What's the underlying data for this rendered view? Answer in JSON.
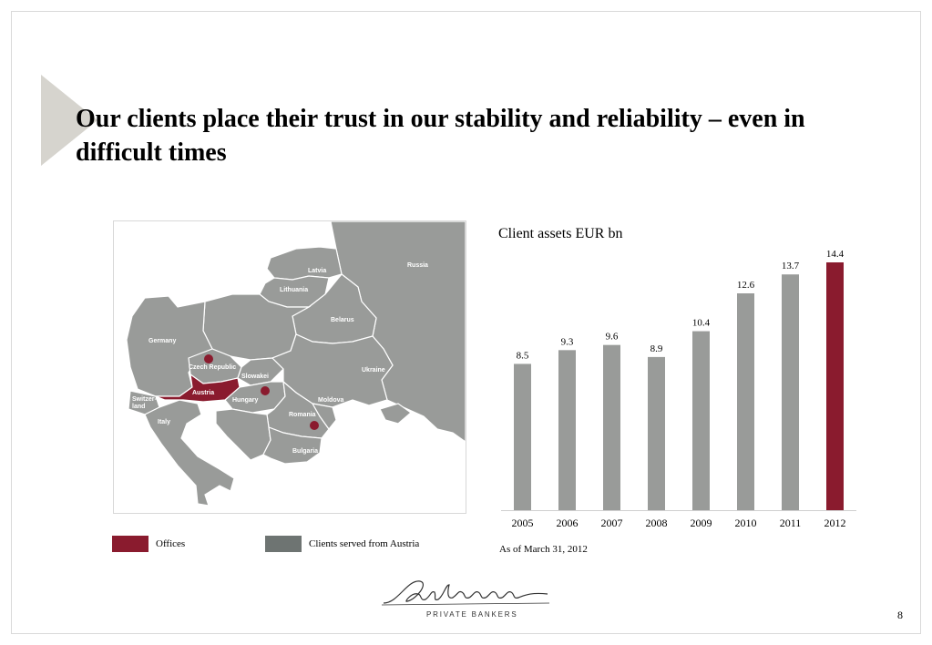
{
  "title": "Our clients place their trust in our stability and reliability – even in difficult times",
  "colors": {
    "offices": "#8a1b2e",
    "clients": "#999b99",
    "clients_legend": "#6e7472",
    "arrow": "#d6d4ce"
  },
  "map": {
    "labels": [
      {
        "id": "russia",
        "text": "Russia"
      },
      {
        "id": "latvia",
        "text": "Latvia"
      },
      {
        "id": "lithuania",
        "text": "Lithuania"
      },
      {
        "id": "belarus",
        "text": "Belarus"
      },
      {
        "id": "germany",
        "text": "Germany"
      },
      {
        "id": "czech",
        "text": "Czech Republic"
      },
      {
        "id": "slovakia",
        "text": "Slowakei"
      },
      {
        "id": "ukraine",
        "text": "Ukraine"
      },
      {
        "id": "austria",
        "text": "Austria"
      },
      {
        "id": "hungary",
        "text": "Hungary"
      },
      {
        "id": "moldova",
        "text": "Moldova"
      },
      {
        "id": "switzerland",
        "text": "Switzer-\nland"
      },
      {
        "id": "romania",
        "text": "Romania"
      },
      {
        "id": "italy",
        "text": "Italy"
      },
      {
        "id": "bulgaria",
        "text": "Bulgaria"
      }
    ]
  },
  "legend": {
    "offices_label": "Offices",
    "clients_label": "Clients served from Austria"
  },
  "chart_data": {
    "type": "bar",
    "title": "Client assets EUR bn",
    "categories": [
      "2005",
      "2006",
      "2007",
      "2008",
      "2009",
      "2010",
      "2011",
      "2012"
    ],
    "values": [
      8.5,
      9.3,
      9.6,
      8.9,
      10.4,
      12.6,
      13.7,
      14.4
    ],
    "highlight_category": "2012",
    "ylim": [
      0,
      14.4
    ],
    "grid": false,
    "note": "As of March 31, 2012"
  },
  "footer": {
    "logo_name": "Gutmann",
    "logo_subtitle": "PRIVATE BANKERS",
    "page_number": "8"
  }
}
